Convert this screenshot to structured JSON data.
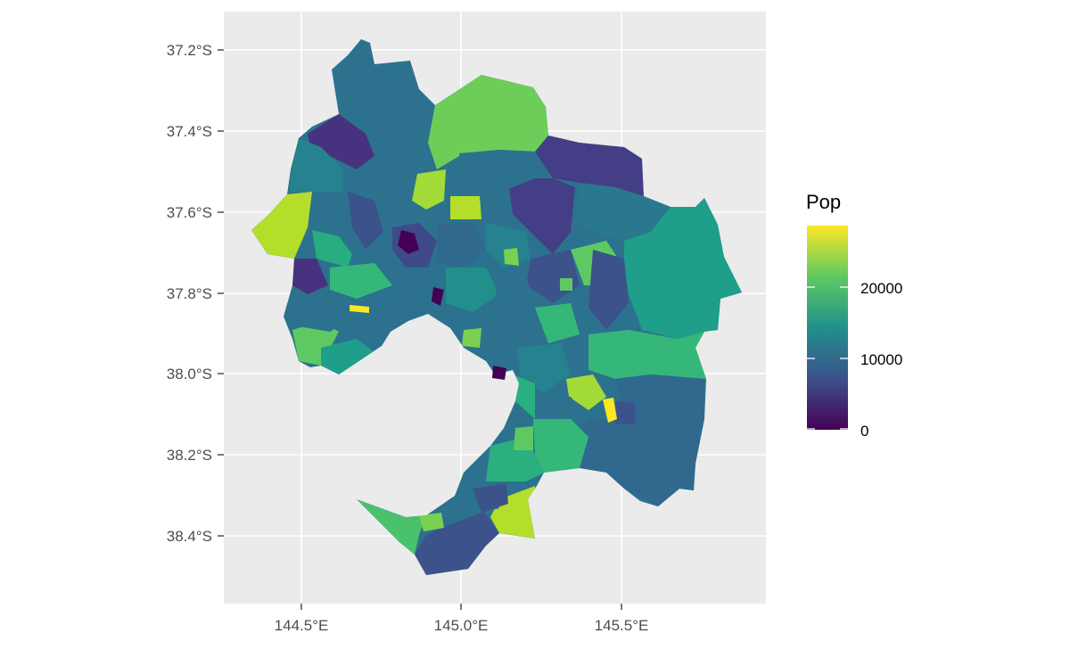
{
  "map": {
    "type": "choropleth",
    "x_ticks": [
      "144.5°E",
      "145.0°E",
      "145.5°E"
    ],
    "y_ticks": [
      "37.2°S",
      "37.4°S",
      "37.6°S",
      "37.8°S",
      "38.0°S",
      "38.2°S",
      "38.4°S"
    ],
    "legend": {
      "title": "Pop",
      "labels": [
        "20000",
        "10000",
        "0"
      ],
      "range": [
        0,
        29000
      ]
    },
    "colors": {
      "panel": "#ebebeb",
      "grid": "#ffffff",
      "scale": [
        "#440154",
        "#3b528b",
        "#21908c",
        "#5ec962",
        "#fde725"
      ]
    }
  }
}
